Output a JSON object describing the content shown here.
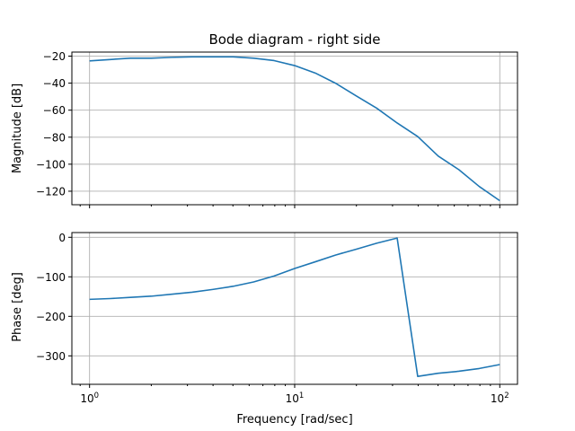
{
  "chart_data": [
    {
      "type": "line",
      "title": "Bode diagram - right side",
      "xlabel": "",
      "ylabel": "Magnitude [dB]",
      "xscale": "log",
      "xlim": [
        0.82,
        122
      ],
      "ylim": [
        -130,
        -17
      ],
      "yticks": [
        -20,
        -40,
        -60,
        -80,
        -100,
        -120
      ],
      "ytick_labels": [
        "−20",
        "−40",
        "−60",
        "−80",
        "−100",
        "−120"
      ],
      "grid": true,
      "series": [
        {
          "name": "magnitude",
          "color": "#1f77b4",
          "x": [
            1,
            1.26,
            1.58,
            2,
            2.51,
            3.16,
            3.98,
            5.01,
            6.31,
            7.94,
            10,
            12.6,
            15.8,
            20,
            25.1,
            31.6,
            39.8,
            50.1,
            63.1,
            79.4,
            100
          ],
          "y": [
            -23.5,
            -22.5,
            -21.5,
            -21.5,
            -20.9,
            -20.5,
            -20.5,
            -20.5,
            -21.5,
            -23.3,
            -27,
            -32.5,
            -40,
            -49.5,
            -58.5,
            -69.5,
            -79.5,
            -94,
            -104,
            -116.5,
            -127
          ]
        }
      ]
    },
    {
      "type": "line",
      "title": "",
      "xlabel": "Frequency [rad/sec]",
      "ylabel": "Phase [deg]",
      "xscale": "log",
      "xlim": [
        0.82,
        122
      ],
      "ylim": [
        -372,
        12
      ],
      "yticks": [
        0,
        -100,
        -200,
        -300
      ],
      "ytick_labels": [
        "0",
        "−100",
        "−200",
        "−300"
      ],
      "xtick_labels": [
        {
          "base": "10",
          "exp": "0"
        },
        {
          "base": "10",
          "exp": "1"
        },
        {
          "base": "10",
          "exp": "2"
        }
      ],
      "grid": true,
      "series": [
        {
          "name": "phase",
          "color": "#1f77b4",
          "x": [
            1,
            1.26,
            1.58,
            2,
            2.51,
            3.16,
            3.98,
            5.01,
            6.31,
            7.94,
            10,
            12.6,
            15.8,
            20,
            25.1,
            31.6,
            39.8,
            50.1,
            63.1,
            79.4,
            100
          ],
          "y": [
            -157,
            -155,
            -152,
            -149,
            -144,
            -139,
            -132,
            -124,
            -113,
            -98,
            -79,
            -62,
            -45,
            -30,
            -15,
            -2,
            -352,
            -344,
            -339,
            -332,
            -322
          ]
        }
      ]
    }
  ]
}
